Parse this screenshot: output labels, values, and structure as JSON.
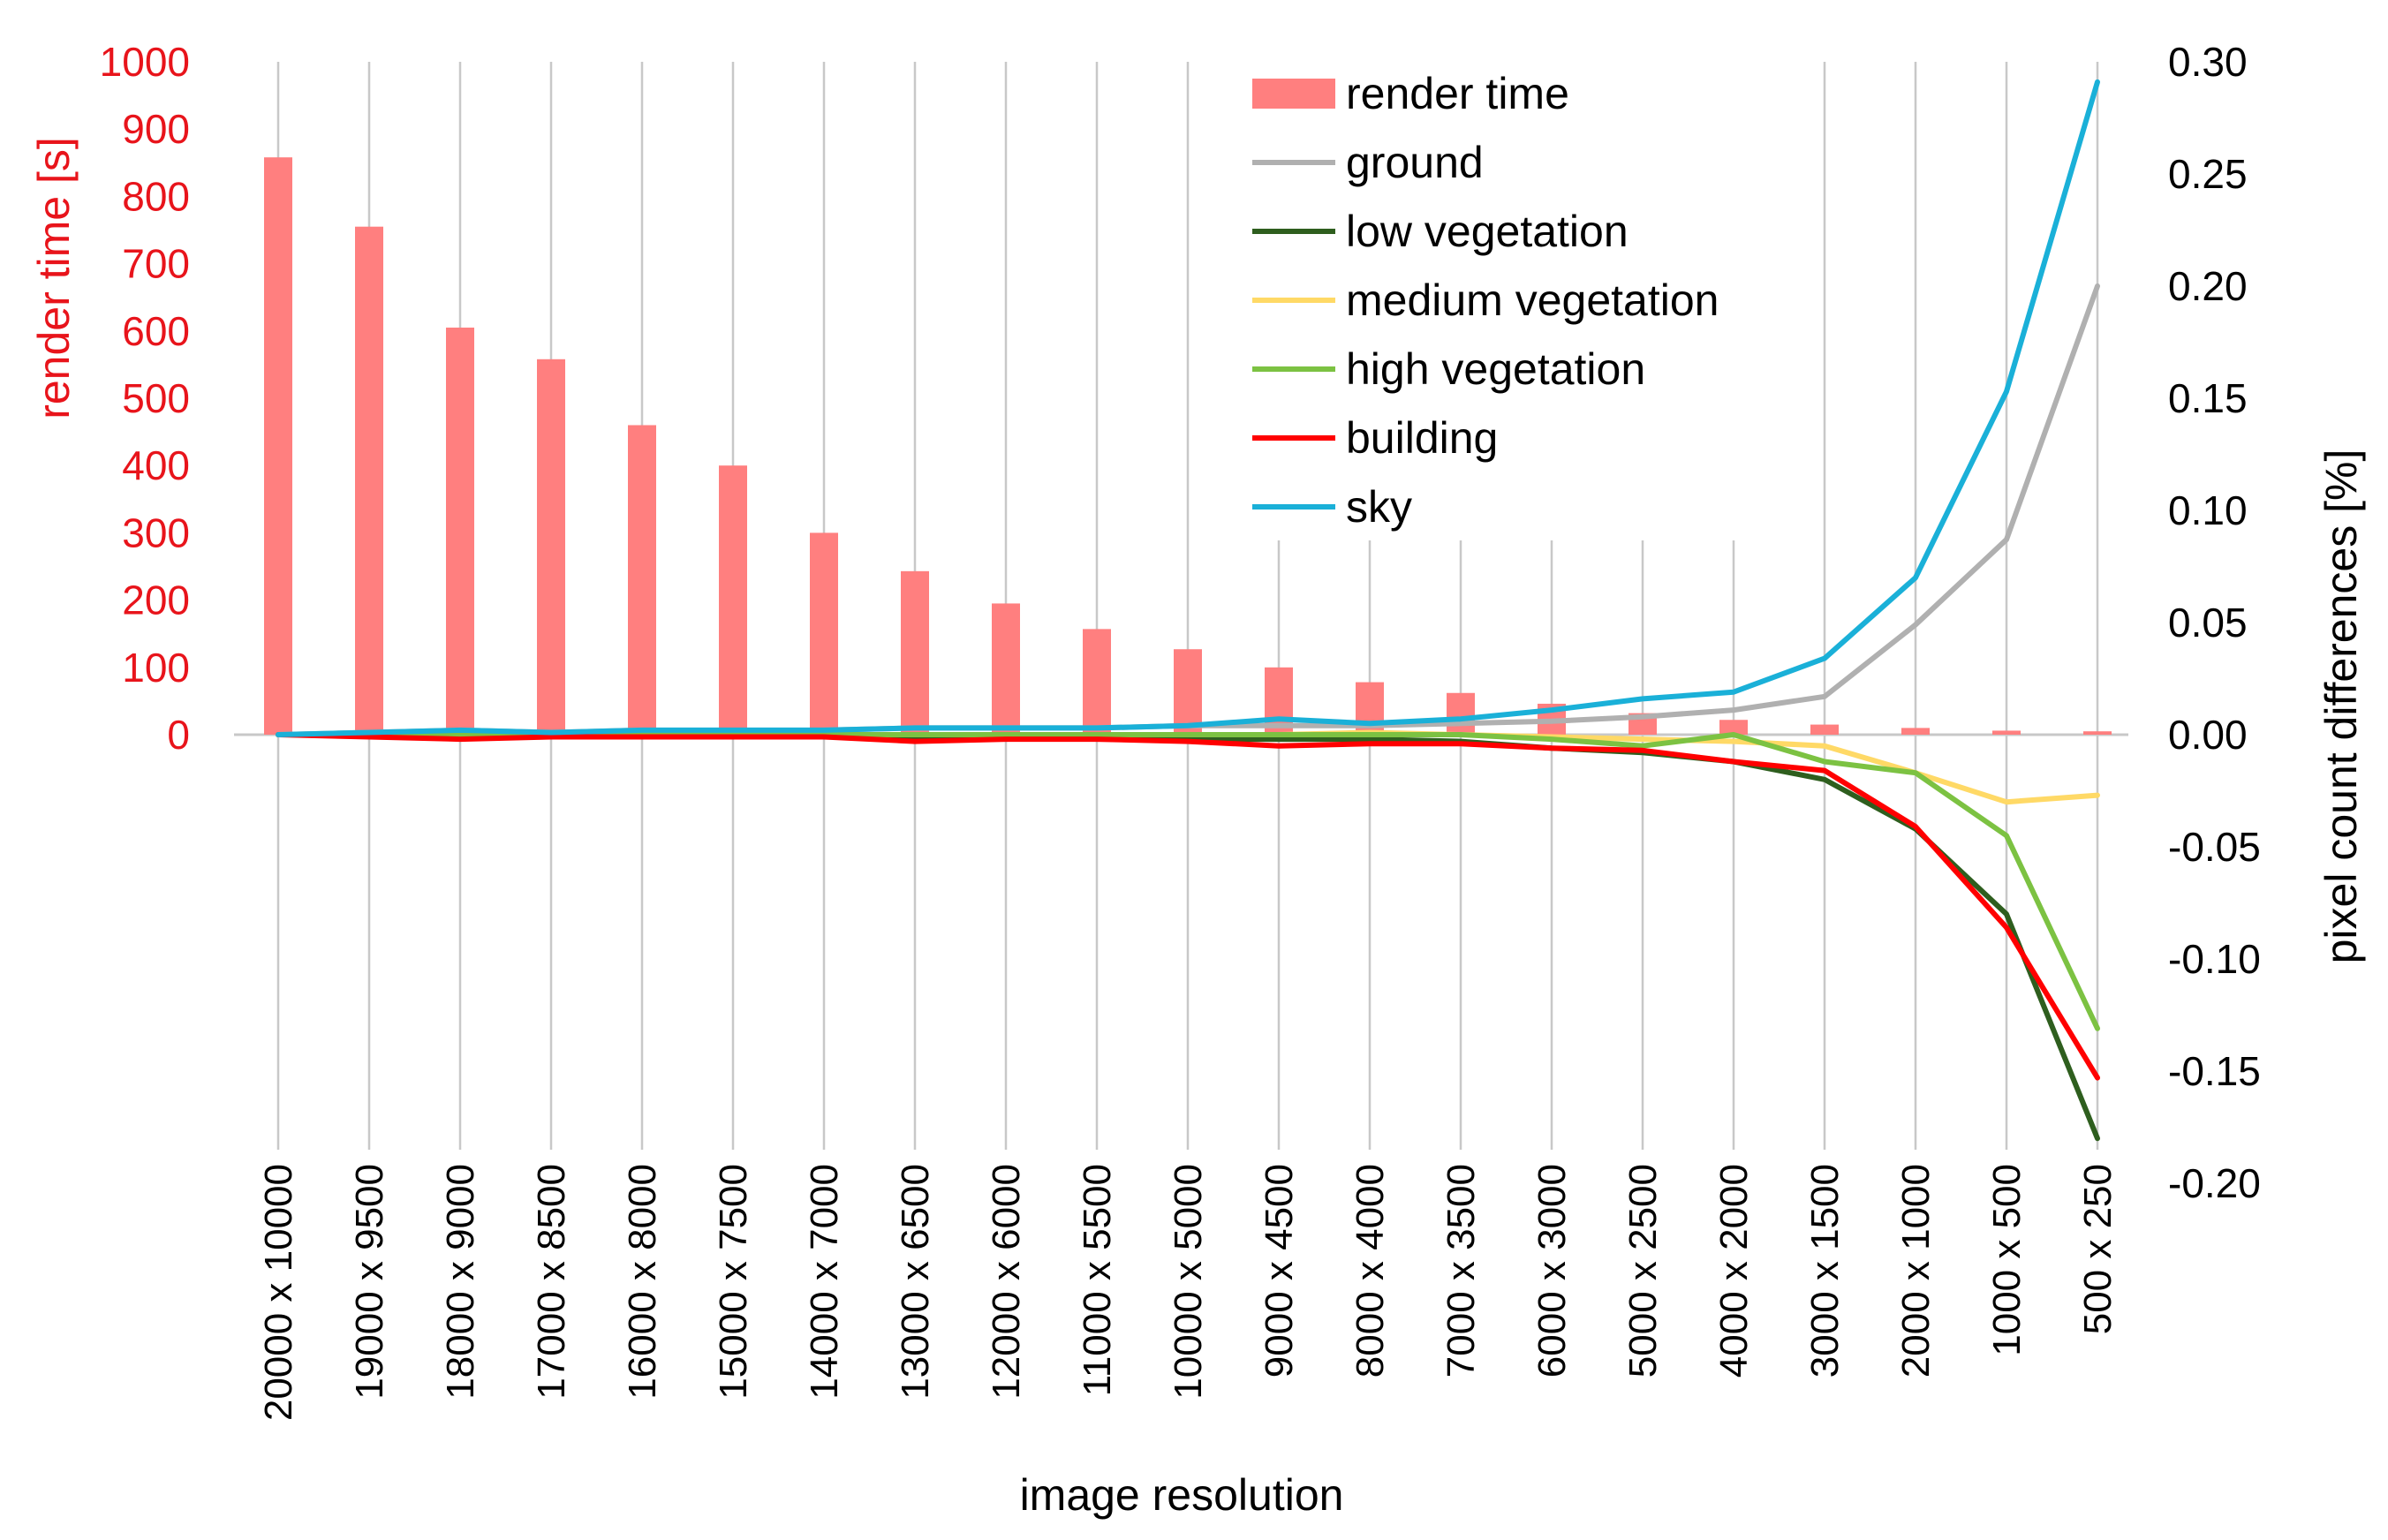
{
  "chart_data": {
    "type": "bar",
    "xlabel": "image resolution",
    "ylabel_left": "render time [s]",
    "ylabel_right": "pixel count differences [%]",
    "ylim_left": [
      0,
      1000
    ],
    "yticks_left": [
      "0",
      "100",
      "200",
      "300",
      "400",
      "500",
      "600",
      "700",
      "800",
      "900",
      "1000"
    ],
    "ylim_right": [
      -0.2,
      0.3
    ],
    "yticks_right": [
      "-0.20",
      "-0.15",
      "-0.10",
      "-0.05",
      "0.00",
      "0.05",
      "0.10",
      "0.15",
      "0.20",
      "0.25",
      "0.30"
    ],
    "grid": "vertical",
    "legend_position": "top-right",
    "categories": [
      "20000 x 10000",
      "19000 x 9500",
      "18000 x 9000",
      "17000 x 8500",
      "16000 x 8000",
      "15000 x 7500",
      "14000 x 7000",
      "13000 x 6500",
      "12000 x 6000",
      "11000 x 5500",
      "10000 x 5000",
      "9000 x 4500",
      "8000 x 4000",
      "7000 x 3500",
      "6000 x 3000",
      "5000 x 2500",
      "4000 x 2000",
      "3000 x 1500",
      "2000 x 1000",
      "1000 x 500",
      "500 x 250"
    ],
    "bars": {
      "name": "render time",
      "color": "#ff7f7f",
      "values": [
        858,
        755,
        605,
        558,
        460,
        400,
        300,
        243,
        195,
        157,
        127,
        100,
        78,
        62,
        46,
        32,
        22,
        15,
        10,
        6,
        5
      ]
    },
    "series": [
      {
        "name": "ground",
        "color": "#b0b0b0",
        "values": [
          0.0,
          0.001,
          0.002,
          0.001,
          0.002,
          0.001,
          0.002,
          0.003,
          0.003,
          0.003,
          0.004,
          0.004,
          0.004,
          0.005,
          0.006,
          0.008,
          0.011,
          0.017,
          0.049,
          0.087,
          0.2
        ]
      },
      {
        "name": "low vegetation",
        "color": "#2e5e1e",
        "values": [
          0.0,
          0.0,
          -0.001,
          0.0,
          -0.001,
          0.0,
          -0.001,
          -0.001,
          -0.001,
          -0.001,
          -0.002,
          -0.002,
          -0.002,
          -0.003,
          -0.006,
          -0.008,
          -0.012,
          -0.02,
          -0.042,
          -0.08,
          -0.18
        ]
      },
      {
        "name": "medium vegetation",
        "color": "#ffd966",
        "values": [
          0.0,
          0.0,
          0.0,
          0.0,
          0.0,
          0.0,
          0.0,
          0.0,
          0.0,
          0.0,
          0.0,
          0.0,
          0.001,
          0.0,
          -0.001,
          -0.002,
          -0.003,
          -0.005,
          -0.017,
          -0.03,
          -0.027
        ]
      },
      {
        "name": "high vegetation",
        "color": "#7cc242",
        "values": [
          0.0,
          0.0,
          0.0,
          0.0,
          0.0,
          0.0,
          0.0,
          0.0,
          0.0,
          0.0,
          0.0,
          0.0,
          0.0,
          0.0,
          -0.002,
          -0.005,
          0.0,
          -0.012,
          -0.017,
          -0.045,
          -0.131
        ]
      },
      {
        "name": "building",
        "color": "#ff0000",
        "values": [
          0.0,
          -0.001,
          -0.002,
          -0.001,
          -0.001,
          -0.001,
          -0.001,
          -0.003,
          -0.002,
          -0.002,
          -0.003,
          -0.005,
          -0.004,
          -0.004,
          -0.006,
          -0.007,
          -0.012,
          -0.016,
          -0.041,
          -0.086,
          -0.153
        ]
      },
      {
        "name": "sky",
        "color": "#1ab0d8",
        "values": [
          0.0,
          0.001,
          0.002,
          0.001,
          0.002,
          0.002,
          0.002,
          0.003,
          0.003,
          0.003,
          0.004,
          0.007,
          0.005,
          0.007,
          0.011,
          0.016,
          0.019,
          0.034,
          0.07,
          0.153,
          0.291
        ]
      }
    ]
  }
}
